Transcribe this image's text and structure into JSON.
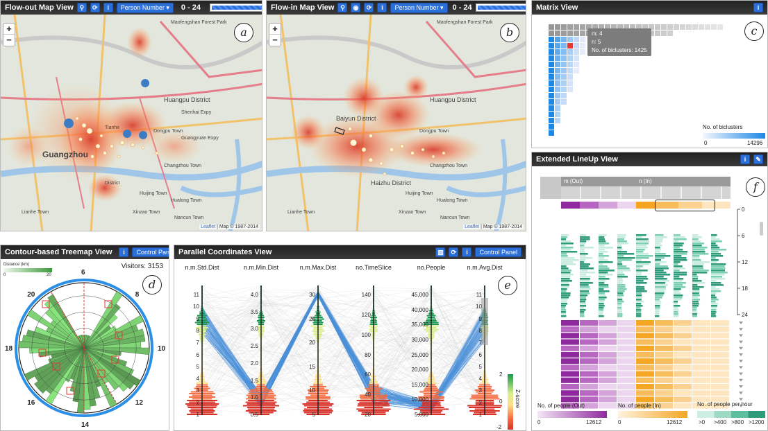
{
  "flow_out": {
    "title": "Flow-out Map View",
    "dropdown": "Person Number ▾",
    "range": "0 - 24",
    "label": "a",
    "attribution_link": "Leaflet",
    "attribution_text": "| Map © 1987-2014",
    "places": [
      "Maofengshan Forest Park",
      "Huangpu District",
      "Dongpu Town",
      "Tianhe",
      "Guangzhou",
      "District",
      "Changzhou Town",
      "Huijing Town",
      "Hualong Town",
      "Nancun Town",
      "Xinzao Town",
      "Lianhe Town",
      "Shenhai Expy",
      "Guangyuan Expy"
    ]
  },
  "flow_in": {
    "title": "Flow-in Map View",
    "dropdown": "Person Number ▾",
    "range": "0 - 24",
    "label": "b",
    "attribution_link": "Leaflet",
    "attribution_text": "| Map © 1987-2014",
    "places": [
      "Maofengshan Forest Park",
      "Huangpu District",
      "Dongpu Town",
      "Baiyun District",
      "Haizhu District",
      "Changzhou Town",
      "Huijing Town",
      "Hualong Town",
      "Nancun Town",
      "Xinzao Town",
      "Lianhe Town"
    ]
  },
  "matrix": {
    "title": "Matrix View",
    "label": "c",
    "tooltip": {
      "m": "m: 4",
      "n": "n: 5",
      "count": "No. of biclusters: 1425"
    },
    "legend_title": "No. of biclusters",
    "legend_min": "0",
    "legend_max": "14296",
    "colors": {
      "low": "#e6f2fd",
      "high": "#1e88e5",
      "highlight": "#e53935"
    }
  },
  "lineup": {
    "title": "Extended LineUp View",
    "label": "f",
    "col_out": "m (Out)",
    "col_in": "n (In)",
    "axis_ticks": [
      "0",
      "6",
      "12",
      "18",
      "24"
    ],
    "legend": {
      "out_title": "No. of people (Out)",
      "out_min": "0",
      "out_max": "12612",
      "in_title": "No. of people (In)",
      "in_min": "0",
      "in_max": "12612",
      "rate_title": "No. of people per hour",
      "rate_labels": [
        ">0",
        ">400",
        ">800",
        ">1200"
      ]
    },
    "colors": {
      "out": "#8e2a9e",
      "in": "#f5a623",
      "rate": "#2e9c7a"
    }
  },
  "treemap": {
    "title": "Contour-based Treemap View",
    "control_panel": "Control Panel",
    "visitors": "Visitors: 3153",
    "legend_title": "Distance (km)",
    "legend_min": "0",
    "legend_max": "20",
    "label": "d",
    "hours": [
      "6",
      "8",
      "10",
      "12",
      "14",
      "16",
      "18",
      "20"
    ]
  },
  "pcp": {
    "title": "Parallel Coordinates View",
    "control_panel": "Control Panel",
    "label": "e",
    "axes": [
      {
        "name": "n.m.Std.Dist",
        "ticks": [
          "11",
          "10",
          "9",
          "8",
          "7",
          "6",
          "5",
          "4",
          "3",
          "2",
          "1"
        ],
        "min": 0.5,
        "max": 11.3
      },
      {
        "name": "n.m.Min.Dist",
        "ticks": [
          "4.0",
          "3.5",
          "3.0",
          "2.5",
          "2.0",
          "1.5",
          "1.0",
          "0.5"
        ],
        "min": 0.3,
        "max": 4.1
      },
      {
        "name": "n.m.Max.Dist",
        "ticks": [
          "30",
          "25",
          "20",
          "15",
          "10",
          "5"
        ],
        "min": 2,
        "max": 31
      },
      {
        "name": "no.TimeSlice",
        "ticks": [
          "140",
          "120",
          "100",
          "80",
          "60",
          "40",
          "20"
        ],
        "min": 5,
        "max": 145
      },
      {
        "name": "no.People",
        "ticks": [
          "45,000",
          "40,000",
          "35,000",
          "30,000",
          "25,000",
          "20,000",
          "15,000",
          "10,000",
          "5,000"
        ],
        "min": 2000,
        "max": 46000
      },
      {
        "name": "n.m.Avg.Dist",
        "ticks": [
          "11",
          "10",
          "9",
          "8",
          "7",
          "6",
          "5",
          "4",
          "3",
          "2",
          "1"
        ],
        "min": 0.5,
        "max": 11.3
      }
    ],
    "zscore_title": "Z-score",
    "zscore_ticks": [
      "2",
      "0",
      "-2"
    ]
  }
}
